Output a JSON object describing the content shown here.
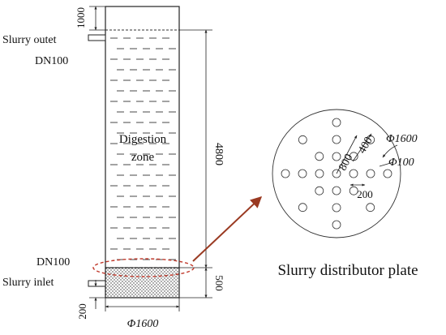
{
  "labels": {
    "slurry_outlet": "Slurry outet",
    "outlet_dn": "DN100",
    "digestion_line1": "Digestion",
    "digestion_line2": "zone",
    "inlet_dn": "DN100",
    "slurry_inlet": "Slurry inlet",
    "tank_diameter": "Φ1600",
    "plate_diameter": "Φ1600",
    "hole_diameter": "Φ100",
    "plate_title": "Slurry distributor plate"
  },
  "dimensions": {
    "top_freeboard": "1000",
    "digestion_height": "4800",
    "bottom_zone_height": "500",
    "inlet_height": "200",
    "ring_spacing_outer": "800",
    "ring_spacing_inner": "400",
    "hole_spacing": "200"
  },
  "colors": {
    "line": "#222222",
    "arrow": "#9a3a22",
    "highlight": "#c0392b"
  }
}
